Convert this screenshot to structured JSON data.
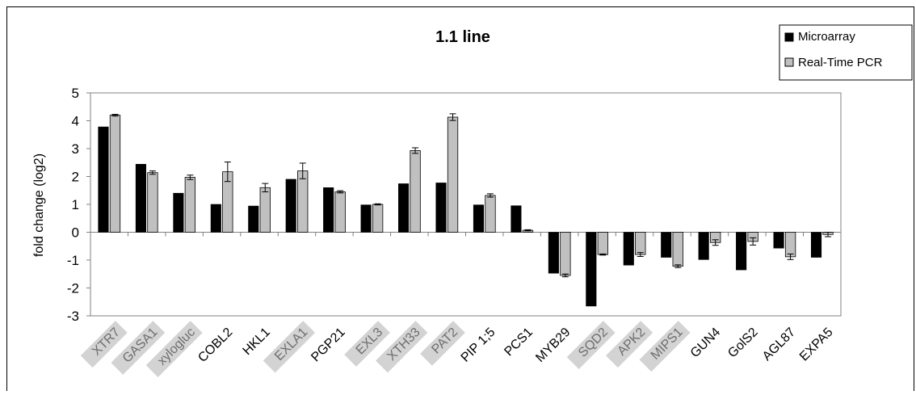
{
  "chart_data": {
    "type": "bar",
    "title": "1.1 line",
    "xlabel": "",
    "ylabel": "fold change (log2)",
    "ylim": [
      -3,
      5
    ],
    "yticks": [
      5,
      4,
      3,
      2,
      1,
      0,
      -1,
      -2,
      -3
    ],
    "grid": false,
    "legend_position": "top-right",
    "categories": [
      "XTR7",
      "GASA1",
      "xylogluc",
      "COBL2",
      "HKL1",
      "EXLA1",
      "PGP21",
      "EXL3",
      "XTH33",
      "PAT2",
      "PIP 1;5",
      "PCS1",
      "MYB29",
      "SQD2",
      "APK2",
      "MIPS1",
      "GUN4",
      "GolS2",
      "AGL87",
      "EXPA5"
    ],
    "highlighted_categories": [
      "XTR7",
      "GASA1",
      "xylogluc",
      "EXLA1",
      "EXL3",
      "XTH33",
      "PAT2",
      "SQD2",
      "APK2",
      "MIPS1"
    ],
    "series": [
      {
        "name": "Microarray",
        "color": "#000000",
        "values": [
          3.78,
          2.44,
          1.4,
          1.0,
          0.94,
          1.9,
          1.6,
          0.98,
          1.74,
          1.77,
          0.98,
          0.95,
          -1.47,
          -2.65,
          -1.18,
          -0.9,
          -0.98,
          -1.35,
          -0.57,
          -0.9
        ]
      },
      {
        "name": "Real-Time PCR",
        "color": "#c0c0c0",
        "values": [
          4.2,
          2.14,
          1.97,
          2.17,
          1.6,
          2.2,
          1.45,
          1.0,
          2.93,
          4.13,
          1.32,
          0.07,
          -1.55,
          -0.8,
          -0.8,
          -1.22,
          -0.37,
          -0.33,
          -0.88,
          -0.08
        ],
        "errors": [
          0.03,
          0.06,
          0.08,
          0.35,
          0.15,
          0.28,
          0.04,
          0.02,
          0.1,
          0.12,
          0.06,
          0.02,
          0.05,
          0.02,
          0.07,
          0.05,
          0.1,
          0.13,
          0.1,
          0.08
        ]
      }
    ],
    "colors": {
      "highlight_box": "#d3d3d3",
      "border": "#000000",
      "axis": "#808080"
    }
  }
}
